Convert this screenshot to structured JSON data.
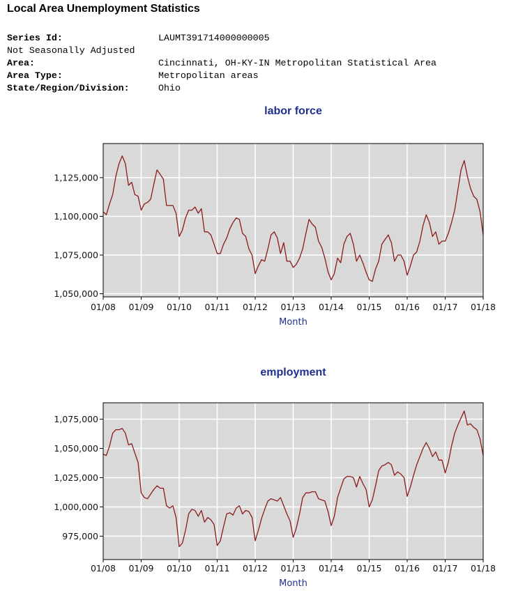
{
  "page": {
    "title": "Local Area Unemployment Statistics"
  },
  "meta": {
    "series_id_label": "Series Id:",
    "series_id_value": "LAUMT391714000000005",
    "seasonal": "Not Seasonally Adjusted",
    "area_label": "Area:",
    "area_value": "Cincinnati, OH-KY-IN Metropolitan Statistical Area",
    "area_type_label": "Area Type:",
    "area_type_value": "Metropolitan areas",
    "state_label": "State/Region/Division:",
    "state_value": "Ohio"
  },
  "colors": {
    "plot_bg": "#d9d9d9",
    "grid": "#ffffff",
    "line": "#8b1a1a",
    "title": "#1f2f8f"
  },
  "chart_data": [
    {
      "type": "line",
      "title": "labor force",
      "xlabel": "Month",
      "ylabel": "",
      "grid": true,
      "x_ticks": [
        "01/08",
        "01/09",
        "01/10",
        "01/11",
        "01/12",
        "01/13",
        "01/14",
        "01/15",
        "01/16",
        "01/17",
        "01/18"
      ],
      "y_ticks": [
        "1,050,000",
        "1,075,000",
        "1,100,000",
        "1,125,000"
      ],
      "y_tick_values": [
        1050000,
        1075000,
        1100000,
        1125000
      ],
      "ylim": [
        1048000,
        1147000
      ],
      "xlim": [
        "01/08",
        "01/18"
      ],
      "keys": [
        [
          "2008-01",
          1103000
        ],
        [
          "2008-02",
          1101000
        ],
        [
          "2008-03",
          1108000
        ],
        [
          "2008-04",
          1114000
        ],
        [
          "2008-05",
          1126000
        ],
        [
          "2008-06",
          1134000
        ],
        [
          "2008-07",
          1139000
        ],
        [
          "2008-08",
          1134000
        ],
        [
          "2008-09",
          1120000
        ],
        [
          "2008-10",
          1122000
        ],
        [
          "2008-11",
          1114000
        ],
        [
          "2008-12",
          1113000
        ],
        [
          "2009-01",
          1104000
        ],
        [
          "2009-02",
          1108000
        ],
        [
          "2009-03",
          1109000
        ],
        [
          "2009-04",
          1111000
        ],
        [
          "2009-05",
          1121000
        ],
        [
          "2009-06",
          1130000
        ],
        [
          "2009-07",
          1127000
        ],
        [
          "2009-08",
          1124000
        ],
        [
          "2009-09",
          1107000
        ],
        [
          "2009-10",
          1107000
        ],
        [
          "2009-11",
          1107000
        ],
        [
          "2009-12",
          1102000
        ],
        [
          "2010-01",
          1087000
        ],
        [
          "2010-02",
          1091000
        ],
        [
          "2010-03",
          1099000
        ],
        [
          "2010-04",
          1104000
        ],
        [
          "2010-05",
          1104000
        ],
        [
          "2010-06",
          1106000
        ],
        [
          "2010-07",
          1102000
        ],
        [
          "2010-08",
          1105000
        ],
        [
          "2010-09",
          1090000
        ],
        [
          "2010-10",
          1090000
        ],
        [
          "2010-11",
          1088000
        ],
        [
          "2010-12",
          1082000
        ],
        [
          "2011-01",
          1076000
        ],
        [
          "2011-02",
          1076000
        ],
        [
          "2011-03",
          1082000
        ],
        [
          "2011-04",
          1086000
        ],
        [
          "2011-05",
          1092000
        ],
        [
          "2011-06",
          1096000
        ],
        [
          "2011-07",
          1099000
        ],
        [
          "2011-08",
          1098000
        ],
        [
          "2011-09",
          1089000
        ],
        [
          "2011-10",
          1087000
        ],
        [
          "2011-11",
          1079000
        ],
        [
          "2011-12",
          1075000
        ],
        [
          "2012-01",
          1063000
        ],
        [
          "2012-02",
          1068000
        ],
        [
          "2012-03",
          1072000
        ],
        [
          "2012-04",
          1071000
        ],
        [
          "2012-05",
          1079000
        ],
        [
          "2012-06",
          1088000
        ],
        [
          "2012-07",
          1090000
        ],
        [
          "2012-08",
          1086000
        ],
        [
          "2012-09",
          1076000
        ],
        [
          "2012-10",
          1083000
        ],
        [
          "2012-11",
          1071000
        ],
        [
          "2012-12",
          1071000
        ],
        [
          "2013-01",
          1067000
        ],
        [
          "2013-02",
          1069000
        ],
        [
          "2013-03",
          1073000
        ],
        [
          "2013-04",
          1079000
        ],
        [
          "2013-05",
          1089000
        ],
        [
          "2013-06",
          1098000
        ],
        [
          "2013-07",
          1095000
        ],
        [
          "2013-08",
          1093000
        ],
        [
          "2013-09",
          1084000
        ],
        [
          "2013-10",
          1080000
        ],
        [
          "2013-11",
          1073000
        ],
        [
          "2013-12",
          1064000
        ],
        [
          "2014-01",
          1059000
        ],
        [
          "2014-02",
          1063000
        ],
        [
          "2014-03",
          1073000
        ],
        [
          "2014-04",
          1070000
        ],
        [
          "2014-05",
          1082000
        ],
        [
          "2014-06",
          1087000
        ],
        [
          "2014-07",
          1089000
        ],
        [
          "2014-08",
          1082000
        ],
        [
          "2014-09",
          1071000
        ],
        [
          "2014-10",
          1075000
        ],
        [
          "2014-11",
          1070000
        ],
        [
          "2014-12",
          1064000
        ],
        [
          "2015-01",
          1059000
        ],
        [
          "2015-02",
          1058000
        ],
        [
          "2015-03",
          1066000
        ],
        [
          "2015-04",
          1071000
        ],
        [
          "2015-05",
          1082000
        ],
        [
          "2015-06",
          1085000
        ],
        [
          "2015-07",
          1088000
        ],
        [
          "2015-08",
          1083000
        ],
        [
          "2015-09",
          1071000
        ],
        [
          "2015-10",
          1075000
        ],
        [
          "2015-11",
          1075000
        ],
        [
          "2015-12",
          1071000
        ],
        [
          "2016-01",
          1062000
        ],
        [
          "2016-02",
          1068000
        ],
        [
          "2016-03",
          1075000
        ],
        [
          "2016-04",
          1077000
        ],
        [
          "2016-05",
          1084000
        ],
        [
          "2016-06",
          1094000
        ],
        [
          "2016-07",
          1101000
        ],
        [
          "2016-08",
          1096000
        ],
        [
          "2016-09",
          1087000
        ],
        [
          "2016-10",
          1090000
        ],
        [
          "2016-11",
          1082000
        ],
        [
          "2016-12",
          1084000
        ],
        [
          "2017-01",
          1084000
        ],
        [
          "2017-02",
          1089000
        ],
        [
          "2017-03",
          1096000
        ],
        [
          "2017-04",
          1104000
        ],
        [
          "2017-05",
          1117000
        ],
        [
          "2017-06",
          1130000
        ],
        [
          "2017-07",
          1136000
        ],
        [
          "2017-08",
          1126000
        ],
        [
          "2017-09",
          1118000
        ],
        [
          "2017-10",
          1113000
        ],
        [
          "2017-11",
          1111000
        ],
        [
          "2017-12",
          1103000
        ],
        [
          "2018-01",
          1088000
        ]
      ]
    },
    {
      "type": "line",
      "title": "employment",
      "xlabel": "Month",
      "ylabel": "",
      "grid": true,
      "x_ticks": [
        "01/08",
        "01/09",
        "01/10",
        "01/11",
        "01/12",
        "01/13",
        "01/14",
        "01/15",
        "01/16",
        "01/17",
        "01/18"
      ],
      "y_ticks": [
        "975,000",
        "1,000,000",
        "1,025,000",
        "1,050,000",
        "1,075,000"
      ],
      "y_tick_values": [
        975000,
        1000000,
        1025000,
        1050000,
        1075000
      ],
      "ylim": [
        955000,
        1089000
      ],
      "xlim": [
        "01/08",
        "01/18"
      ],
      "keys": [
        [
          "2008-01",
          1045000
        ],
        [
          "2008-02",
          1044000
        ],
        [
          "2008-03",
          1052000
        ],
        [
          "2008-04",
          1063000
        ],
        [
          "2008-05",
          1066000
        ],
        [
          "2008-06",
          1066000
        ],
        [
          "2008-07",
          1067000
        ],
        [
          "2008-08",
          1063000
        ],
        [
          "2008-09",
          1053000
        ],
        [
          "2008-10",
          1054000
        ],
        [
          "2008-11",
          1046000
        ],
        [
          "2008-12",
          1038000
        ],
        [
          "2009-01",
          1012000
        ],
        [
          "2009-02",
          1008000
        ],
        [
          "2009-03",
          1007000
        ],
        [
          "2009-04",
          1011000
        ],
        [
          "2009-05",
          1015000
        ],
        [
          "2009-06",
          1018000
        ],
        [
          "2009-07",
          1016000
        ],
        [
          "2009-08",
          1016000
        ],
        [
          "2009-09",
          1001000
        ],
        [
          "2009-10",
          999000
        ],
        [
          "2009-11",
          1001000
        ],
        [
          "2009-12",
          991000
        ],
        [
          "2010-01",
          966000
        ],
        [
          "2010-02",
          969000
        ],
        [
          "2010-03",
          980000
        ],
        [
          "2010-04",
          994000
        ],
        [
          "2010-05",
          998000
        ],
        [
          "2010-06",
          997000
        ],
        [
          "2010-07",
          992000
        ],
        [
          "2010-08",
          997000
        ],
        [
          "2010-09",
          987000
        ],
        [
          "2010-10",
          991000
        ],
        [
          "2010-11",
          989000
        ],
        [
          "2010-12",
          985000
        ],
        [
          "2011-01",
          967000
        ],
        [
          "2011-02",
          971000
        ],
        [
          "2011-03",
          983000
        ],
        [
          "2011-04",
          994000
        ],
        [
          "2011-05",
          995000
        ],
        [
          "2011-06",
          993000
        ],
        [
          "2011-07",
          999000
        ],
        [
          "2011-08",
          1001000
        ],
        [
          "2011-09",
          994000
        ],
        [
          "2011-10",
          997000
        ],
        [
          "2011-11",
          996000
        ],
        [
          "2011-12",
          991000
        ],
        [
          "2012-01",
          971000
        ],
        [
          "2012-02",
          980000
        ],
        [
          "2012-03",
          990000
        ],
        [
          "2012-04",
          998000
        ],
        [
          "2012-05",
          1005000
        ],
        [
          "2012-06",
          1007000
        ],
        [
          "2012-07",
          1006000
        ],
        [
          "2012-08",
          1005000
        ],
        [
          "2012-09",
          1008000
        ],
        [
          "2012-10",
          1001000
        ],
        [
          "2012-11",
          994000
        ],
        [
          "2012-12",
          988000
        ],
        [
          "2013-01",
          974000
        ],
        [
          "2013-02",
          982000
        ],
        [
          "2013-03",
          994000
        ],
        [
          "2013-04",
          1008000
        ],
        [
          "2013-05",
          1012000
        ],
        [
          "2013-06",
          1012000
        ],
        [
          "2013-07",
          1013000
        ],
        [
          "2013-08",
          1013000
        ],
        [
          "2013-09",
          1007000
        ],
        [
          "2013-10",
          1006000
        ],
        [
          "2013-11",
          1005000
        ],
        [
          "2013-12",
          996000
        ],
        [
          "2014-01",
          984000
        ],
        [
          "2014-02",
          992000
        ],
        [
          "2014-03",
          1008000
        ],
        [
          "2014-04",
          1016000
        ],
        [
          "2014-05",
          1024000
        ],
        [
          "2014-06",
          1026000
        ],
        [
          "2014-07",
          1026000
        ],
        [
          "2014-08",
          1025000
        ],
        [
          "2014-09",
          1017000
        ],
        [
          "2014-10",
          1026000
        ],
        [
          "2014-11",
          1020000
        ],
        [
          "2014-12",
          1015000
        ],
        [
          "2015-01",
          1000000
        ],
        [
          "2015-02",
          1006000
        ],
        [
          "2015-03",
          1018000
        ],
        [
          "2015-04",
          1031000
        ],
        [
          "2015-05",
          1035000
        ],
        [
          "2015-06",
          1036000
        ],
        [
          "2015-07",
          1038000
        ],
        [
          "2015-08",
          1036000
        ],
        [
          "2015-09",
          1027000
        ],
        [
          "2015-10",
          1030000
        ],
        [
          "2015-11",
          1028000
        ],
        [
          "2015-12",
          1025000
        ],
        [
          "2016-01",
          1009000
        ],
        [
          "2016-02",
          1017000
        ],
        [
          "2016-03",
          1027000
        ],
        [
          "2016-04",
          1036000
        ],
        [
          "2016-05",
          1043000
        ],
        [
          "2016-06",
          1050000
        ],
        [
          "2016-07",
          1055000
        ],
        [
          "2016-08",
          1050000
        ],
        [
          "2016-09",
          1043000
        ],
        [
          "2016-10",
          1047000
        ],
        [
          "2016-11",
          1040000
        ],
        [
          "2016-12",
          1040000
        ],
        [
          "2017-01",
          1029000
        ],
        [
          "2017-02",
          1038000
        ],
        [
          "2017-03",
          1052000
        ],
        [
          "2017-04",
          1063000
        ],
        [
          "2017-05",
          1070000
        ],
        [
          "2017-06",
          1076000
        ],
        [
          "2017-07",
          1082000
        ],
        [
          "2017-08",
          1070000
        ],
        [
          "2017-09",
          1071000
        ],
        [
          "2017-10",
          1068000
        ],
        [
          "2017-11",
          1066000
        ],
        [
          "2017-12",
          1058000
        ],
        [
          "2018-01",
          1044000
        ]
      ]
    }
  ]
}
